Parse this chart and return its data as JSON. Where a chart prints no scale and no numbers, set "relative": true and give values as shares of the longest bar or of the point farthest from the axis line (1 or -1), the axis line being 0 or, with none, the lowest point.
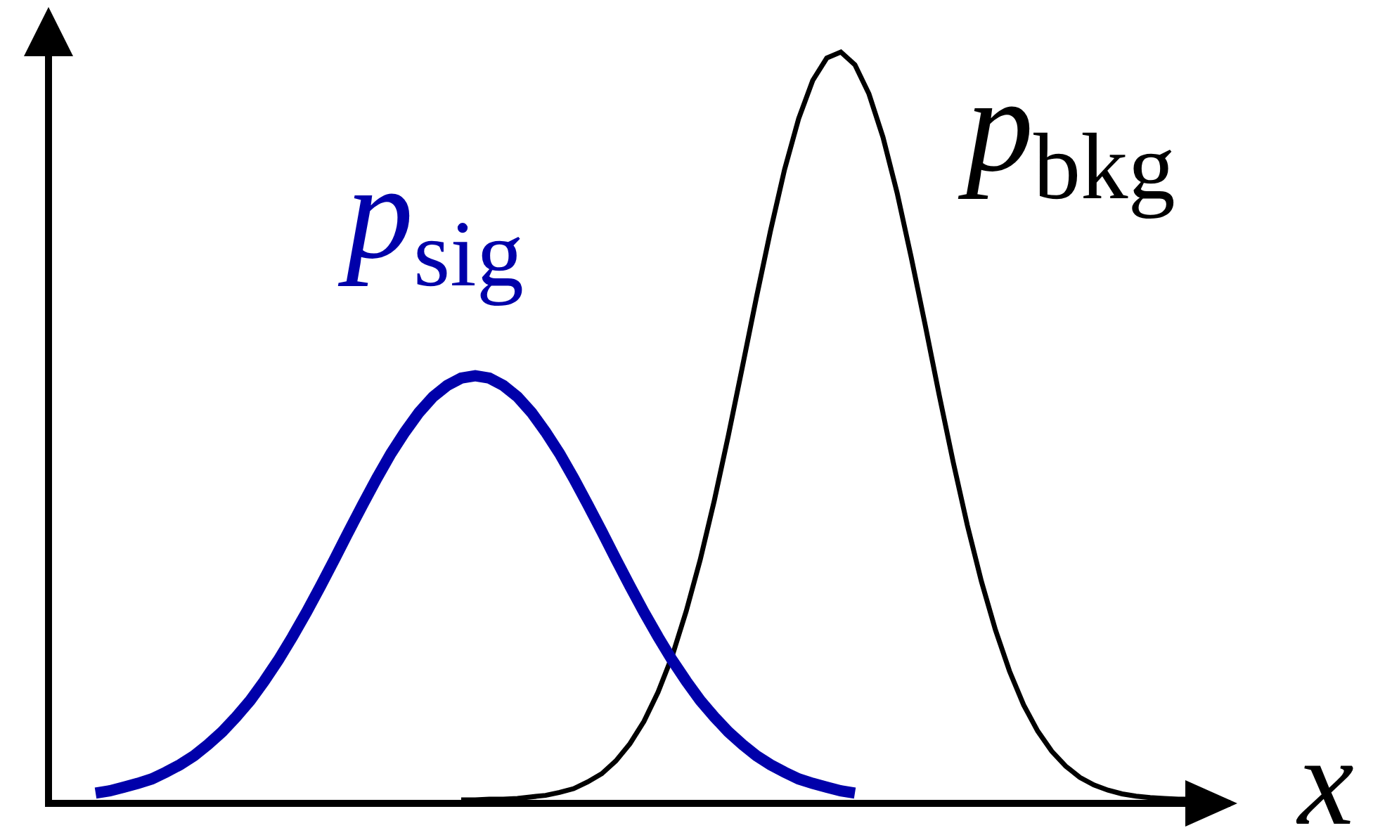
{
  "chart_data": {
    "type": "line",
    "relative": true,
    "xlabel": "x",
    "categories": [
      null,
      null,
      null,
      null,
      null,
      null,
      null,
      null,
      null,
      null,
      null,
      null,
      null,
      null,
      null,
      null,
      null,
      null,
      null,
      null,
      null,
      null,
      null,
      null,
      null,
      null,
      null,
      null,
      null,
      null,
      null,
      null,
      null,
      null,
      null,
      null,
      null,
      null,
      null,
      null,
      null,
      null,
      null,
      null,
      null,
      null,
      null,
      null,
      null,
      null,
      null,
      null,
      null,
      null,
      null,
      null,
      null,
      null,
      null,
      null,
      null,
      null,
      null,
      null,
      null,
      null,
      null,
      null,
      null,
      null,
      null,
      null,
      null,
      null,
      null,
      null,
      null,
      null,
      null,
      null,
      null
    ],
    "series": [
      {
        "name": "p$_{sig}$",
        "color": "#0000aa",
        "values": [
          0.009,
          0.012,
          0.017,
          0.022,
          0.028,
          0.037,
          0.047,
          0.059,
          0.074,
          0.091,
          0.111,
          0.133,
          0.159,
          0.187,
          0.218,
          0.251,
          0.286,
          0.322,
          0.359,
          0.395,
          0.43,
          0.463,
          0.492,
          0.518,
          0.539,
          0.554,
          0.564,
          0.567,
          0.564,
          0.554,
          0.539,
          0.518,
          0.492,
          0.463,
          0.43,
          0.395,
          0.359,
          0.322,
          0.286,
          0.251,
          0.218,
          0.187,
          0.159,
          0.133,
          0.111,
          0.091,
          0.074,
          0.059,
          0.047,
          0.037,
          0.028,
          0.022,
          0.017,
          0.012,
          0.009,
          null,
          null,
          null,
          null,
          null,
          null,
          null,
          null,
          null,
          null,
          null,
          null,
          null,
          null,
          null,
          null,
          null,
          null,
          null,
          null,
          null,
          null,
          null,
          null,
          null,
          null
        ]
      },
      {
        "name": "p$_{bkg}$",
        "color": "#000000",
        "values": [
          null,
          null,
          null,
          null,
          null,
          null,
          null,
          null,
          null,
          null,
          null,
          null,
          null,
          null,
          null,
          null,
          null,
          null,
          null,
          null,
          null,
          null,
          null,
          null,
          null,
          null,
          0,
          0,
          0.001,
          0.001,
          0.002,
          0.004,
          0.006,
          0.01,
          0.015,
          0.024,
          0.035,
          0.052,
          0.075,
          0.105,
          0.144,
          0.192,
          0.252,
          0.321,
          0.4,
          0.487,
          0.579,
          0.672,
          0.761,
          0.843,
          0.911,
          0.962,
          0.992,
          1,
          0.983,
          0.944,
          0.886,
          0.812,
          0.726,
          0.635,
          0.541,
          0.451,
          0.367,
          0.292,
          0.227,
          0.172,
          0.127,
          0.092,
          0.065,
          0.045,
          0.03,
          0.02,
          0.013,
          0.008,
          0.005,
          0.003,
          0.002,
          0.001,
          0.001,
          0,
          0
        ]
      }
    ]
  }
}
